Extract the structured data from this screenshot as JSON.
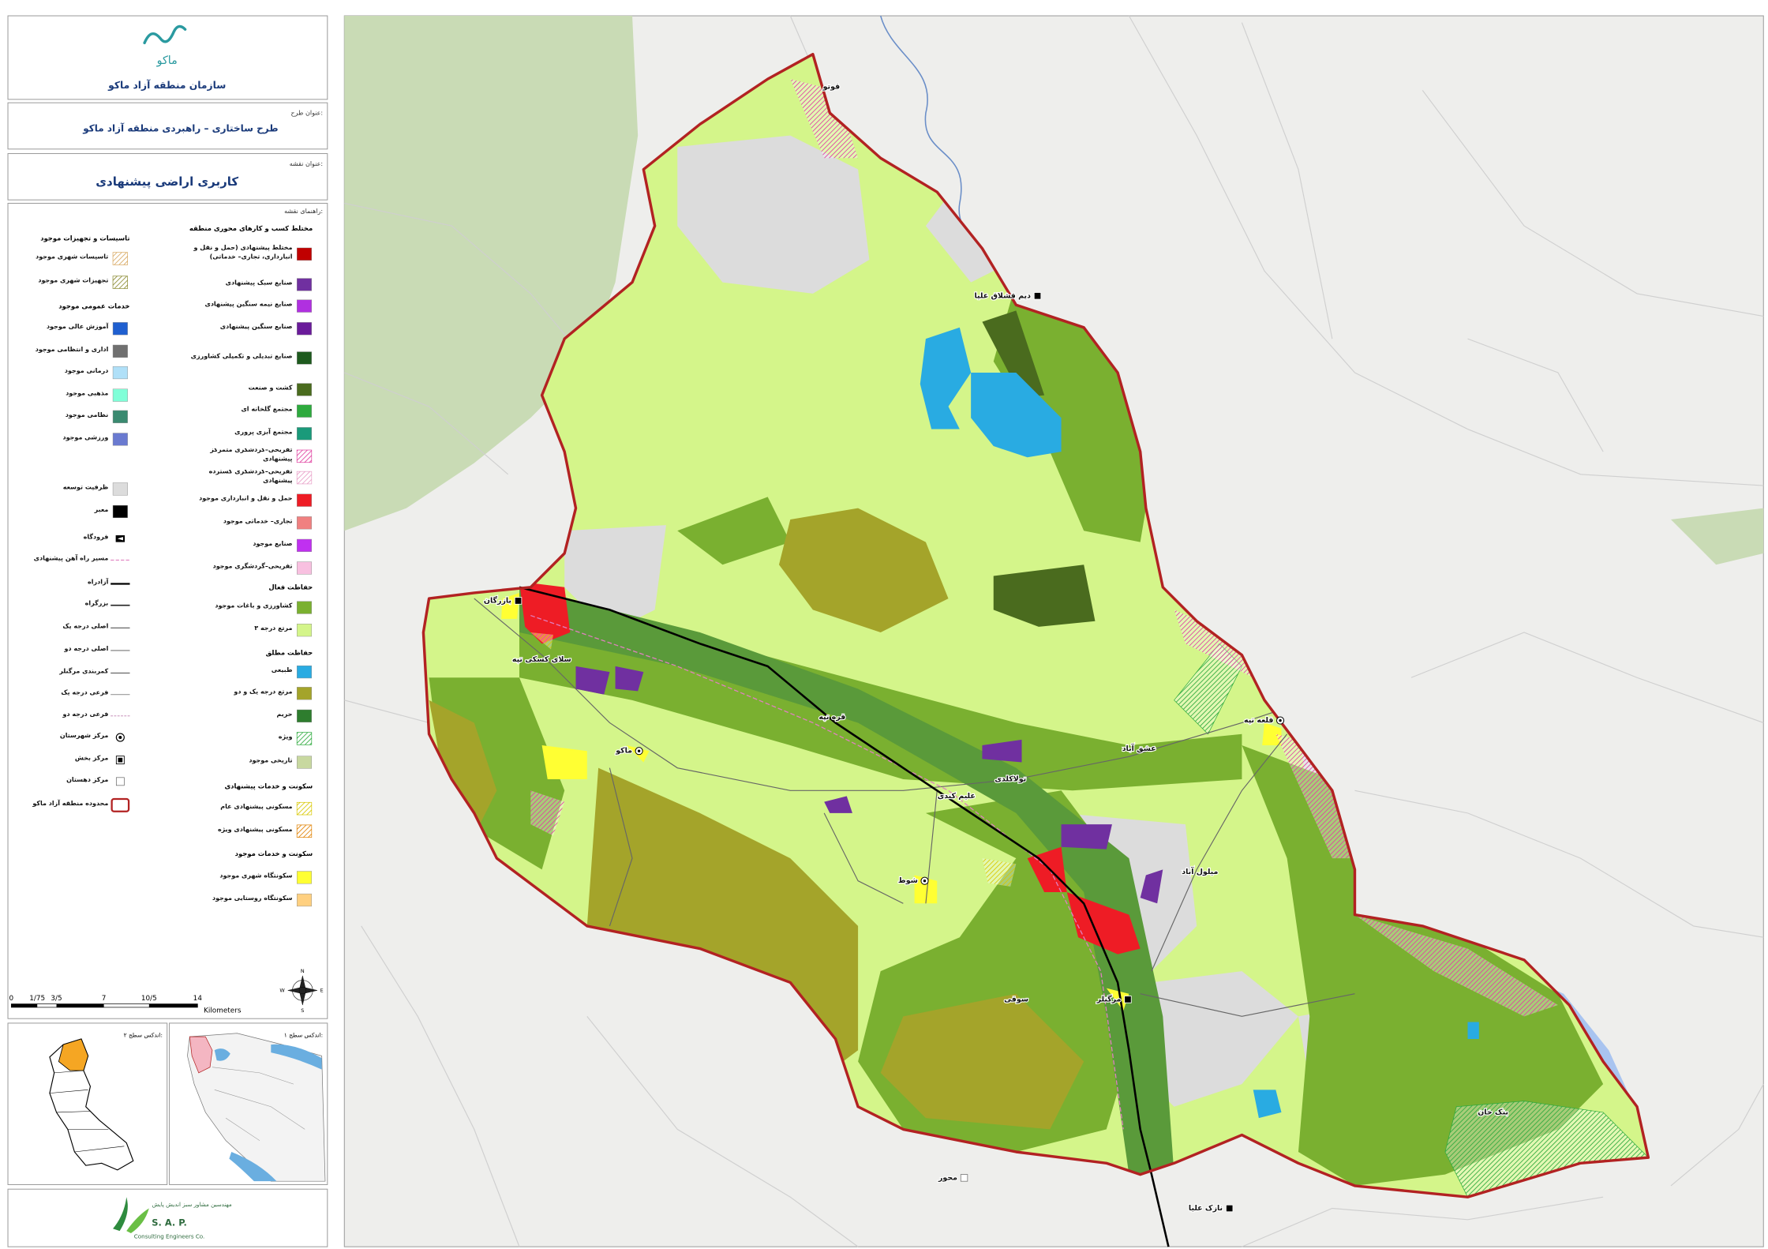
{
  "header": {
    "logo_text": "ماکو",
    "organization": "سازمان منطقه آزاد ماکو"
  },
  "project": {
    "label": "عنوان طرح:",
    "title": "طرح ساختاری – راهبردی منطقه آزاد ماکو"
  },
  "map_title": {
    "label": "عنوان نقشه:",
    "title": "کاربری اراضی پیشنهادی"
  },
  "legend": {
    "label": "راهنمای نقشه:",
    "right_column": [
      {
        "title": "مختلط کسب و کارهای محوری منطقه",
        "items": [
          {
            "label": "مختلط پیشنهادی (حمل و نقل و انبارداری، تجاری– خدماتی)",
            "color": "#c00000",
            "style": "fill"
          },
          {
            "label": "صنایع سبک پیشنهادی",
            "color": "#7030a0",
            "style": "fill"
          },
          {
            "label": "صنایع نیمه سنگین پیشنهادی",
            "color": "#b030e0",
            "style": "fill"
          },
          {
            "label": "صنایع سنگین پیشنهادی",
            "color": "#6a1b9a",
            "style": "fill"
          },
          {
            "label": "صنایع تبدیلی و تکمیلی کشاورزی",
            "color": "#1e5a1e",
            "style": "fill"
          },
          {
            "label": "کشت و صنعت",
            "color": "#4a6b1e",
            "style": "fill"
          },
          {
            "label": "مجتمع گلخانه ای",
            "color": "#2eaa3e",
            "style": "fill"
          },
          {
            "label": "مجتمع آبزی پروری",
            "color": "#1a9a7a",
            "style": "fill"
          },
          {
            "label": "تفریحی–گردشگری متمرکز پیشنهادی",
            "color": "#e040a0",
            "style": "hatch"
          },
          {
            "label": "تفریحی–گردشگری گسترده پیشنهادی",
            "color": "#e8a0c8",
            "style": "hatch"
          },
          {
            "label": "حمل و نقل و انبارداری موجود",
            "color": "#ee1c25",
            "style": "fill"
          },
          {
            "label": "تجاری– خدماتی موجود",
            "color": "#f08080",
            "style": "fill"
          },
          {
            "label": "صنایع موجود",
            "color": "#c030f0",
            "style": "fill"
          },
          {
            "label": "تفریحی–گردشگری موجود",
            "color": "#f8c0e0",
            "style": "fill"
          }
        ]
      },
      {
        "title": "حفاظت فعال",
        "items": [
          {
            "label": "کشاورزی و باغات موجود",
            "color": "#7ab030",
            "style": "fill"
          },
          {
            "label": "مرتع درجه ۳",
            "color": "#d4f58a",
            "style": "fill"
          }
        ]
      },
      {
        "title": "حفاظت مطلق",
        "items": [
          {
            "label": "طبیعی",
            "color": "#29abe2",
            "style": "fill"
          },
          {
            "label": "مرتع درجه یک و دو",
            "color": "#a4a42a",
            "style": "fill"
          },
          {
            "label": "حریم",
            "color": "#2e7d2e",
            "style": "fill"
          },
          {
            "label": "ویژه",
            "color": "#2eaa3e",
            "style": "hatch"
          },
          {
            "label": "تاریخی موجود",
            "color": "#c8d8a0",
            "style": "fill"
          }
        ]
      },
      {
        "title": "سکونت و خدمات پیشنهادی",
        "items": [
          {
            "label": "مسکونی پیشنهادی عام",
            "color": "#d8c800",
            "style": "hatch"
          },
          {
            "label": "مسکونی پیشنهادی ویژه",
            "color": "#e08000",
            "style": "hatch"
          }
        ]
      },
      {
        "title": "سکونت و خدمات موجود",
        "items": [
          {
            "label": "سکونتگاه شهری موجود",
            "color": "#ffff33",
            "style": "fill"
          },
          {
            "label": "سکونتگاه روستایی موجود",
            "color": "#ffd080",
            "style": "fill"
          }
        ]
      }
    ],
    "left_column": [
      {
        "title": "تاسیسات و تجهیزات موجود",
        "items": [
          {
            "label": "تاسیسات شهری موجود",
            "color": "#d8a860",
            "style": "hatch"
          },
          {
            "label": "تجهیزات شهری موجود",
            "color": "#8a8a30",
            "style": "hatch"
          }
        ]
      },
      {
        "title": "خدمات عمومی موجود",
        "items": [
          {
            "label": "آموزش عالی موجود",
            "color": "#1f5fd0",
            "style": "fill"
          },
          {
            "label": "اداری و انتظامی موجود",
            "color": "#707070",
            "style": "fill"
          },
          {
            "label": "درمانی موجود",
            "color": "#b0e0f8",
            "style": "fill"
          },
          {
            "label": "مذهبی موجود",
            "color": "#80ffd8",
            "style": "fill"
          },
          {
            "label": "نظامی موجود",
            "color": "#3a8a70",
            "style": "fill"
          },
          {
            "label": "ورزشی موجود",
            "color": "#6a7ad0",
            "style": "fill"
          }
        ]
      },
      {
        "items": [
          {
            "label": "ظرفیت توسعه",
            "color": "#dcdcdc",
            "style": "fill"
          },
          {
            "label": "معبر",
            "color": "#000000",
            "style": "fill"
          }
        ]
      },
      {
        "items": [
          {
            "label": "فرودگاه",
            "color": "#000000",
            "style": "airport"
          },
          {
            "label": "مسیر راه آهن پیشنهادی",
            "color": "#e080c0",
            "style": "rail"
          },
          {
            "label": "آزادراه",
            "color": "#000000",
            "style": "freeway"
          },
          {
            "label": "بزرگراه",
            "color": "#222222",
            "style": "highway"
          },
          {
            "label": "اصلی درجه یک",
            "color": "#555555",
            "style": "road"
          },
          {
            "label": "اصلی درجه دو",
            "color": "#777777",
            "style": "road"
          },
          {
            "label": "کمربندی مرگنلر",
            "color": "#666666",
            "style": "road"
          },
          {
            "label": "فرعی درجه یک",
            "color": "#999999",
            "style": "road"
          },
          {
            "label": "فرعی درجه دو",
            "color": "#c080b0",
            "style": "dash"
          },
          {
            "label": "مرکز شهرستان",
            "color": "#000000",
            "style": "circle"
          },
          {
            "label": "مرکز بخش",
            "color": "#000000",
            "style": "square"
          },
          {
            "label": "مرکز دهستان",
            "color": "#000000",
            "style": "open-square"
          },
          {
            "label": "محدوده منطقه آزاد ماکو",
            "color": "#b22222",
            "style": "outline"
          }
        ]
      }
    ]
  },
  "scale_bar": {
    "ticks": [
      "0",
      "1/75",
      "3/5",
      "7",
      "10/5",
      "14"
    ],
    "unit": "Kilometers"
  },
  "north_arrow": {
    "n": "N",
    "e": "E",
    "s": "S",
    "w": "W"
  },
  "index_maps": {
    "level_2": "اندکس سطح ۲:",
    "level_1": "اندکس سطح ۱:"
  },
  "consultant": {
    "name_fa": "مهندسین مشاور سبز اندیش پایش",
    "abbr": "S. A. P.",
    "name_en": "Consulting Engineers Co."
  },
  "map": {
    "places": [
      {
        "name": "قوتو",
        "marker": "none"
      },
      {
        "name": "دیم قشلاق علیا",
        "marker": "square"
      },
      {
        "name": "بازرگان",
        "marker": "square"
      },
      {
        "name": "سلای کسکی تپه",
        "marker": "none"
      },
      {
        "name": "ماکو",
        "marker": "circle"
      },
      {
        "name": "قره تپه",
        "marker": "none"
      },
      {
        "name": "عشق آباد",
        "marker": "none"
      },
      {
        "name": "تولاکلدی",
        "marker": "none"
      },
      {
        "name": "علیم کندی",
        "marker": "none"
      },
      {
        "name": "شوط",
        "marker": "circle"
      },
      {
        "name": "میلول آباد",
        "marker": "none"
      },
      {
        "name": "سوقی",
        "marker": "none"
      },
      {
        "name": "مرگنلر",
        "marker": "square"
      },
      {
        "name": "قلعه تپه",
        "marker": "circle"
      },
      {
        "name": "بنک خان",
        "marker": "none"
      },
      {
        "name": "محور",
        "marker": "open-square"
      },
      {
        "name": "نازک علیا",
        "marker": "square"
      }
    ]
  }
}
